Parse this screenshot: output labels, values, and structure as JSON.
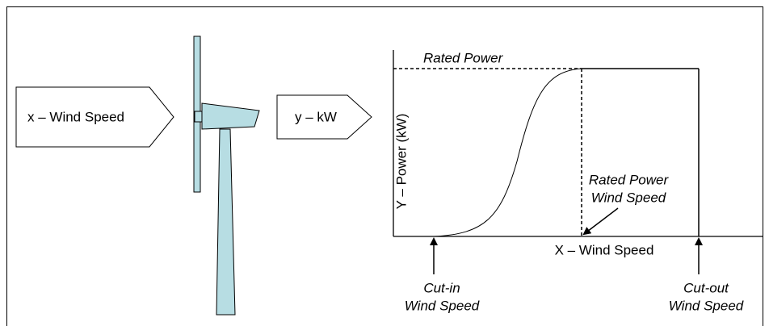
{
  "input_label": "x – Wind Speed",
  "output_label": "y – kW",
  "curve": {
    "y_axis_label": "Y – Power (kW)",
    "x_axis_label": "X – Wind Speed",
    "rated_power": "Rated Power",
    "rated_power_wind_speed": [
      "Rated Power",
      "Wind Speed"
    ],
    "cut_in": [
      "Cut-in",
      "Wind Speed"
    ],
    "cut_out": [
      "Cut-out",
      "Wind Speed"
    ]
  }
}
